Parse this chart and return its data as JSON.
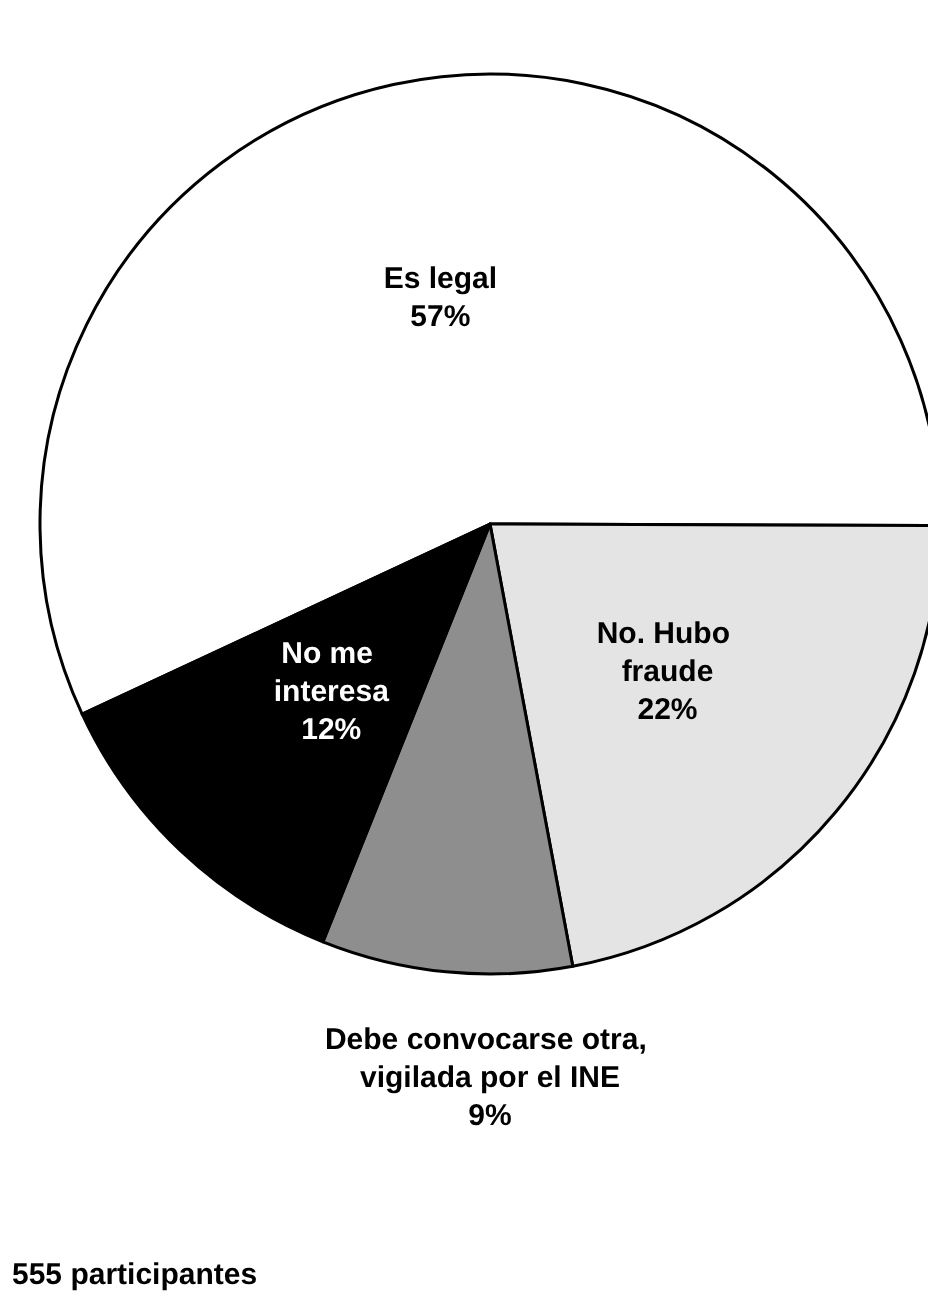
{
  "chart_data": {
    "type": "pie",
    "categories": [
      "Es legal",
      "No. Hubo fraude",
      "Debe convocarse otra, vigilada por el INE",
      "No me interesa"
    ],
    "values": [
      57,
      22,
      9,
      12
    ],
    "colors": [
      "#ffffff",
      "#e4e4e4",
      "#8e8e8e",
      "#000000"
    ],
    "value_labels": [
      "57%",
      "22%",
      "9%",
      "12%"
    ],
    "legend": false,
    "annotations": [
      "555 participantes"
    ]
  }
}
